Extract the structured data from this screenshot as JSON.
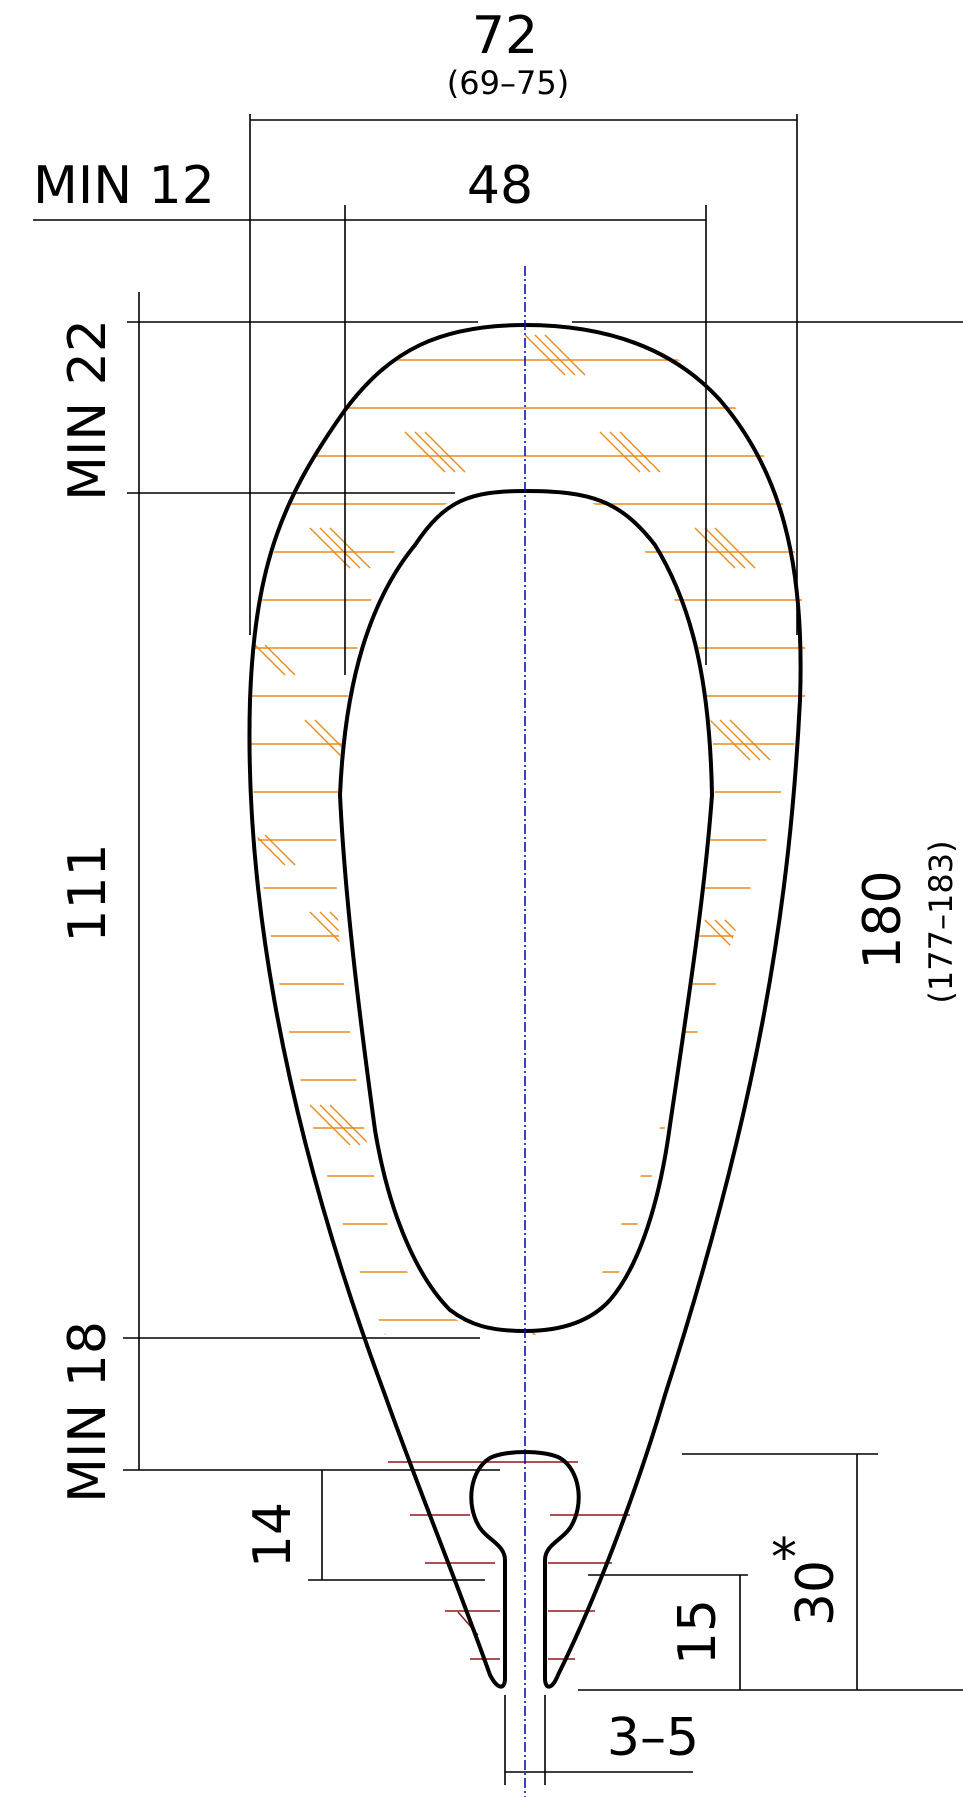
{
  "dimensions": {
    "overall_width": {
      "value": "72",
      "tolerance": "(69–75)"
    },
    "inner_width": {
      "value": "48"
    },
    "min_side_wall": {
      "value": "MIN 12"
    },
    "min_top_wall": {
      "value": "MIN 22"
    },
    "hollow_height": {
      "value": "111"
    },
    "min_bottom_wall": {
      "value": "MIN 18"
    },
    "overall_height": {
      "value": "180",
      "tolerance": "(177–183)"
    },
    "keyhole_height": {
      "value": "14"
    },
    "slot_depth": {
      "value": "15"
    },
    "tail_height": {
      "value": "30",
      "marker": "*"
    },
    "slot_width": {
      "value": "3–5"
    }
  },
  "colors": {
    "outline": "#000000",
    "dimension_lines": "#000000",
    "centerline": "#1010c0",
    "hatch_main": "#e88a1a",
    "hatch_tail": "#8b1a1a"
  }
}
